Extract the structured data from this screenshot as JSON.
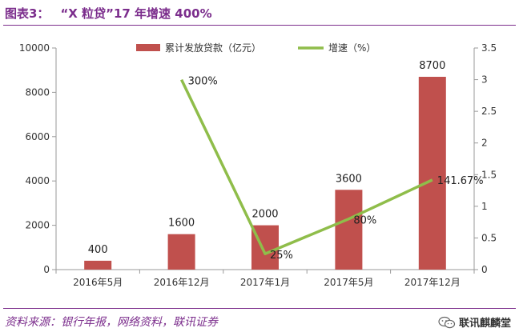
{
  "figure": {
    "label": "图表3：",
    "title": "“X 粒贷”17 年增速 400%"
  },
  "source": "资料来源：银行年报，网络资料，联讯证券",
  "watermark": "联讯麒麟堂",
  "colors": {
    "bar": "#c0504d",
    "line": "#8fbd4a",
    "title": "#7b2d8c"
  },
  "chart_data": {
    "type": "bar+line",
    "categories": [
      "2016年5月",
      "2016年12月",
      "2017年1月",
      "2017年5月",
      "2017年12月"
    ],
    "series": [
      {
        "name": "累计发放贷款（亿元）",
        "type": "bar",
        "axis": "left",
        "values": [
          400,
          1600,
          2000,
          3600,
          8700
        ],
        "labels": [
          "400",
          "1600",
          "2000",
          "3600",
          "8700"
        ]
      },
      {
        "name": "增速（%）",
        "type": "line",
        "axis": "right",
        "values": [
          null,
          3.0,
          0.25,
          0.8,
          1.4167
        ],
        "labels": [
          "",
          "300%",
          "25%",
          "80%",
          "141.67%"
        ]
      }
    ],
    "y_left": {
      "min": 0,
      "max": 10000,
      "ticks": [
        "0",
        "2000",
        "4000",
        "6000",
        "8000",
        "10000"
      ]
    },
    "y_right": {
      "min": 0,
      "max": 3.5,
      "ticks": [
        "0",
        "0.5",
        "1",
        "1.5",
        "2",
        "2.5",
        "3",
        "3.5"
      ]
    },
    "legend_position": "top-center",
    "grid": false
  }
}
